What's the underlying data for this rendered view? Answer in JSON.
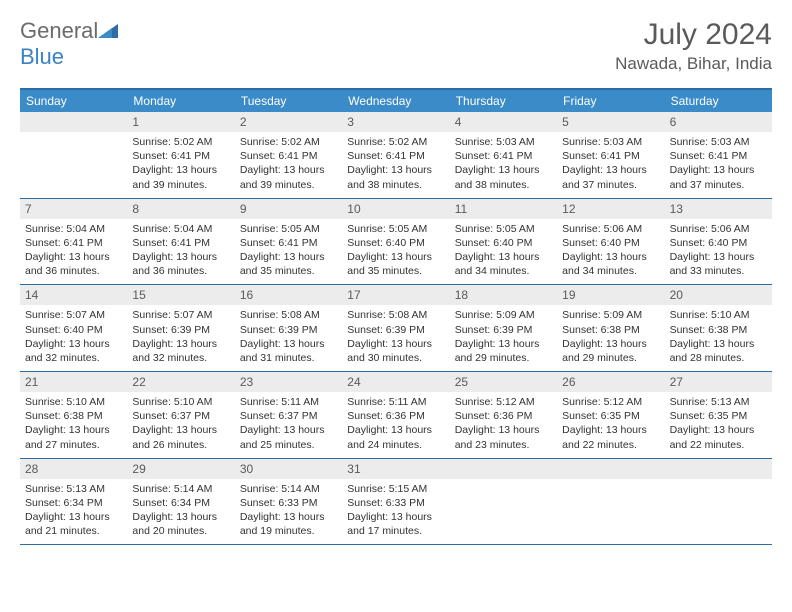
{
  "brand": {
    "text1": "General",
    "text2": "Blue"
  },
  "title": "July 2024",
  "location": "Nawada, Bihar, India",
  "colors": {
    "header_bg": "#3b8bc9",
    "rule": "#2e6ca4",
    "daynum_bg": "#ececec",
    "text_muted": "#5a5a5a",
    "info_text": "#333333"
  },
  "dow": [
    "Sunday",
    "Monday",
    "Tuesday",
    "Wednesday",
    "Thursday",
    "Friday",
    "Saturday"
  ],
  "weeks": [
    [
      null,
      {
        "n": "1",
        "sr": "5:02 AM",
        "ss": "6:41 PM",
        "dl": "13 hours and 39 minutes."
      },
      {
        "n": "2",
        "sr": "5:02 AM",
        "ss": "6:41 PM",
        "dl": "13 hours and 39 minutes."
      },
      {
        "n": "3",
        "sr": "5:02 AM",
        "ss": "6:41 PM",
        "dl": "13 hours and 38 minutes."
      },
      {
        "n": "4",
        "sr": "5:03 AM",
        "ss": "6:41 PM",
        "dl": "13 hours and 38 minutes."
      },
      {
        "n": "5",
        "sr": "5:03 AM",
        "ss": "6:41 PM",
        "dl": "13 hours and 37 minutes."
      },
      {
        "n": "6",
        "sr": "5:03 AM",
        "ss": "6:41 PM",
        "dl": "13 hours and 37 minutes."
      }
    ],
    [
      {
        "n": "7",
        "sr": "5:04 AM",
        "ss": "6:41 PM",
        "dl": "13 hours and 36 minutes."
      },
      {
        "n": "8",
        "sr": "5:04 AM",
        "ss": "6:41 PM",
        "dl": "13 hours and 36 minutes."
      },
      {
        "n": "9",
        "sr": "5:05 AM",
        "ss": "6:41 PM",
        "dl": "13 hours and 35 minutes."
      },
      {
        "n": "10",
        "sr": "5:05 AM",
        "ss": "6:40 PM",
        "dl": "13 hours and 35 minutes."
      },
      {
        "n": "11",
        "sr": "5:05 AM",
        "ss": "6:40 PM",
        "dl": "13 hours and 34 minutes."
      },
      {
        "n": "12",
        "sr": "5:06 AM",
        "ss": "6:40 PM",
        "dl": "13 hours and 34 minutes."
      },
      {
        "n": "13",
        "sr": "5:06 AM",
        "ss": "6:40 PM",
        "dl": "13 hours and 33 minutes."
      }
    ],
    [
      {
        "n": "14",
        "sr": "5:07 AM",
        "ss": "6:40 PM",
        "dl": "13 hours and 32 minutes."
      },
      {
        "n": "15",
        "sr": "5:07 AM",
        "ss": "6:39 PM",
        "dl": "13 hours and 32 minutes."
      },
      {
        "n": "16",
        "sr": "5:08 AM",
        "ss": "6:39 PM",
        "dl": "13 hours and 31 minutes."
      },
      {
        "n": "17",
        "sr": "5:08 AM",
        "ss": "6:39 PM",
        "dl": "13 hours and 30 minutes."
      },
      {
        "n": "18",
        "sr": "5:09 AM",
        "ss": "6:39 PM",
        "dl": "13 hours and 29 minutes."
      },
      {
        "n": "19",
        "sr": "5:09 AM",
        "ss": "6:38 PM",
        "dl": "13 hours and 29 minutes."
      },
      {
        "n": "20",
        "sr": "5:10 AM",
        "ss": "6:38 PM",
        "dl": "13 hours and 28 minutes."
      }
    ],
    [
      {
        "n": "21",
        "sr": "5:10 AM",
        "ss": "6:38 PM",
        "dl": "13 hours and 27 minutes."
      },
      {
        "n": "22",
        "sr": "5:10 AM",
        "ss": "6:37 PM",
        "dl": "13 hours and 26 minutes."
      },
      {
        "n": "23",
        "sr": "5:11 AM",
        "ss": "6:37 PM",
        "dl": "13 hours and 25 minutes."
      },
      {
        "n": "24",
        "sr": "5:11 AM",
        "ss": "6:36 PM",
        "dl": "13 hours and 24 minutes."
      },
      {
        "n": "25",
        "sr": "5:12 AM",
        "ss": "6:36 PM",
        "dl": "13 hours and 23 minutes."
      },
      {
        "n": "26",
        "sr": "5:12 AM",
        "ss": "6:35 PM",
        "dl": "13 hours and 22 minutes."
      },
      {
        "n": "27",
        "sr": "5:13 AM",
        "ss": "6:35 PM",
        "dl": "13 hours and 22 minutes."
      }
    ],
    [
      {
        "n": "28",
        "sr": "5:13 AM",
        "ss": "6:34 PM",
        "dl": "13 hours and 21 minutes."
      },
      {
        "n": "29",
        "sr": "5:14 AM",
        "ss": "6:34 PM",
        "dl": "13 hours and 20 minutes."
      },
      {
        "n": "30",
        "sr": "5:14 AM",
        "ss": "6:33 PM",
        "dl": "13 hours and 19 minutes."
      },
      {
        "n": "31",
        "sr": "5:15 AM",
        "ss": "6:33 PM",
        "dl": "13 hours and 17 minutes."
      },
      null,
      null,
      null
    ]
  ],
  "labels": {
    "sunrise": "Sunrise:",
    "sunset": "Sunset:",
    "daylight": "Daylight:"
  }
}
